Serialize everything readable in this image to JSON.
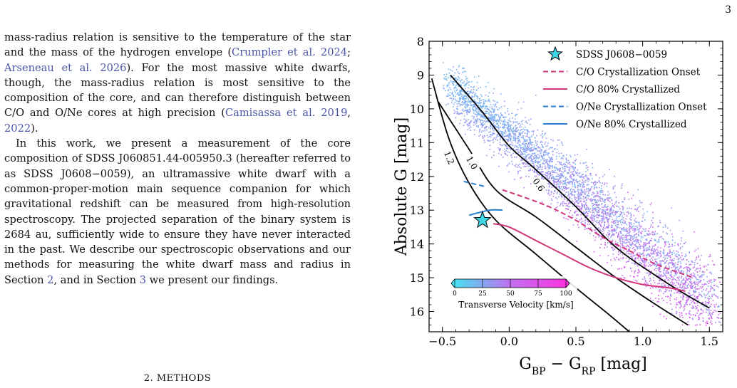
{
  "page_number": "3",
  "paragraph1": [
    {
      "t": "mass-radius relation is sensitive to the temperature of the star and the mass of the hydrogen envelope ("
    },
    {
      "t": "Crumpler et al. 2024",
      "link": true
    },
    {
      "t": "; "
    },
    {
      "t": "Arseneau et al. 2026",
      "link": true
    },
    {
      "t": "). For the most massive white dwarfs, though, the mass-radius relation is most sensitive to the composition of the core, and can therefore distinguish between C/O and O/Ne cores at high precision ("
    },
    {
      "t": "Camisassa et al. 2019",
      "link": true
    },
    {
      "t": ", "
    },
    {
      "t": "2022",
      "link": true
    },
    {
      "t": ")."
    }
  ],
  "paragraph2": [
    {
      "t": "In this work, we present a measurement of the core composition of SDSS J060851.44-005950.3 (hereafter referred to as SDSS J0608−0059), an ultramassive white dwarf with a common-proper-motion main sequence companion for which gravitational redshift can be measured from high-resolution spectroscopy. The projected separation of the binary system is 2684 au, sufficiently wide to ensure they have never interacted in the past. We describe our spectroscopic observations and our methods for measuring the white dwarf mass and radius in Section "
    },
    {
      "t": "2",
      "link": true
    },
    {
      "t": ", and in Section "
    },
    {
      "t": "3",
      "link": true
    },
    {
      "t": " we present our findings."
    }
  ],
  "section_heading": "2. METHODS",
  "chart_data": {
    "type": "scatter",
    "xlabel": "G_BP − G_RP [mag]",
    "ylabel": "Absolute G [mag]",
    "xlim": [
      -0.6,
      1.6
    ],
    "ylim": [
      16.6,
      8.0
    ],
    "y_inverted": true,
    "xticks": [
      "−0.5",
      "0.0",
      "0.5",
      "1.0",
      "1.5"
    ],
    "xtick_values": [
      -0.5,
      0.0,
      0.5,
      1.0,
      1.5
    ],
    "yticks": [
      "8",
      "9",
      "10",
      "11",
      "12",
      "13",
      "14",
      "15",
      "16"
    ],
    "ytick_values": [
      8,
      9,
      10,
      11,
      12,
      13,
      14,
      15,
      16
    ],
    "legend_placement": "top-right",
    "legend": [
      {
        "label": "SDSS J0608−0059",
        "style": "star",
        "color": "#3fd6e6"
      },
      {
        "label": "C/O Crystallization Onset",
        "style": "dashed",
        "color": "#d0357a"
      },
      {
        "label": "C/O 80% Crystallized",
        "style": "solid",
        "color": "#d0357a"
      },
      {
        "label": "O/Ne Crystallization Onset",
        "style": "dashed",
        "color": "#2a7fd1"
      },
      {
        "label": "O/Ne 80% Crystallized",
        "style": "solid",
        "color": "#2a7fd1"
      }
    ],
    "colorbar": {
      "label": "Transverse Velocity [km/s]",
      "ticks": [
        "0",
        "25",
        "50",
        "75",
        "100"
      ],
      "range": [
        0,
        100
      ],
      "colors": [
        "#40e8f0",
        "#c070f0",
        "#ff30e0"
      ]
    },
    "mass_tracks": [
      {
        "label": "0.6",
        "points": [
          [
            -0.44,
            9.0
          ],
          [
            -0.2,
            10.1
          ],
          [
            0.0,
            11.1
          ],
          [
            0.2,
            11.8
          ],
          [
            0.5,
            12.9
          ],
          [
            0.8,
            14.1
          ],
          [
            1.2,
            15.2
          ],
          [
            1.5,
            15.9
          ]
        ]
      },
      {
        "label": "1.0",
        "points": [
          [
            -0.53,
            9.8
          ],
          [
            -0.3,
            11.2
          ],
          [
            -0.1,
            12.4
          ],
          [
            0.2,
            13.2
          ],
          [
            0.5,
            14.1
          ],
          [
            0.8,
            15.0
          ],
          [
            1.1,
            15.8
          ],
          [
            1.34,
            16.4
          ]
        ]
      },
      {
        "label": "1.2",
        "points": [
          [
            -0.58,
            9.1
          ],
          [
            -0.45,
            10.9
          ],
          [
            -0.3,
            12.2
          ],
          [
            -0.1,
            13.3
          ],
          [
            0.2,
            14.3
          ],
          [
            0.5,
            15.3
          ],
          [
            0.75,
            16.1
          ],
          [
            0.9,
            16.6
          ]
        ]
      }
    ],
    "crystallization_curves": [
      {
        "name": "C/O Crystallization Onset",
        "style": "dashed",
        "color": "#d0357a",
        "points": [
          [
            -0.05,
            12.4
          ],
          [
            0.1,
            12.6
          ],
          [
            0.3,
            12.9
          ],
          [
            0.5,
            13.3
          ],
          [
            0.7,
            13.8
          ],
          [
            0.9,
            14.2
          ],
          [
            1.1,
            14.6
          ],
          [
            1.38,
            15.0
          ]
        ]
      },
      {
        "name": "C/O 80% Crystallized",
        "style": "solid",
        "color": "#d0357a",
        "points": [
          [
            -0.12,
            13.4
          ],
          [
            0.0,
            13.5
          ],
          [
            0.2,
            13.9
          ],
          [
            0.4,
            14.3
          ],
          [
            0.6,
            14.7
          ],
          [
            0.8,
            15.0
          ],
          [
            1.0,
            15.2
          ],
          [
            1.2,
            15.3
          ],
          [
            1.32,
            15.4
          ]
        ]
      },
      {
        "name": "O/Ne Crystallization Onset",
        "style": "dashed",
        "color": "#2a7fd1",
        "points": [
          [
            -0.34,
            12.15
          ],
          [
            -0.18,
            12.3
          ]
        ]
      },
      {
        "name": "O/Ne 80% Crystallized",
        "style": "solid",
        "color": "#2a7fd1",
        "points": [
          [
            -0.3,
            13.15
          ],
          [
            -0.15,
            13.0
          ],
          [
            -0.05,
            13.0
          ]
        ]
      }
    ],
    "highlighted_star": {
      "label": "SDSS J0608−0059",
      "x": -0.2,
      "y": 13.3,
      "color": "#3fd6e6"
    }
  }
}
